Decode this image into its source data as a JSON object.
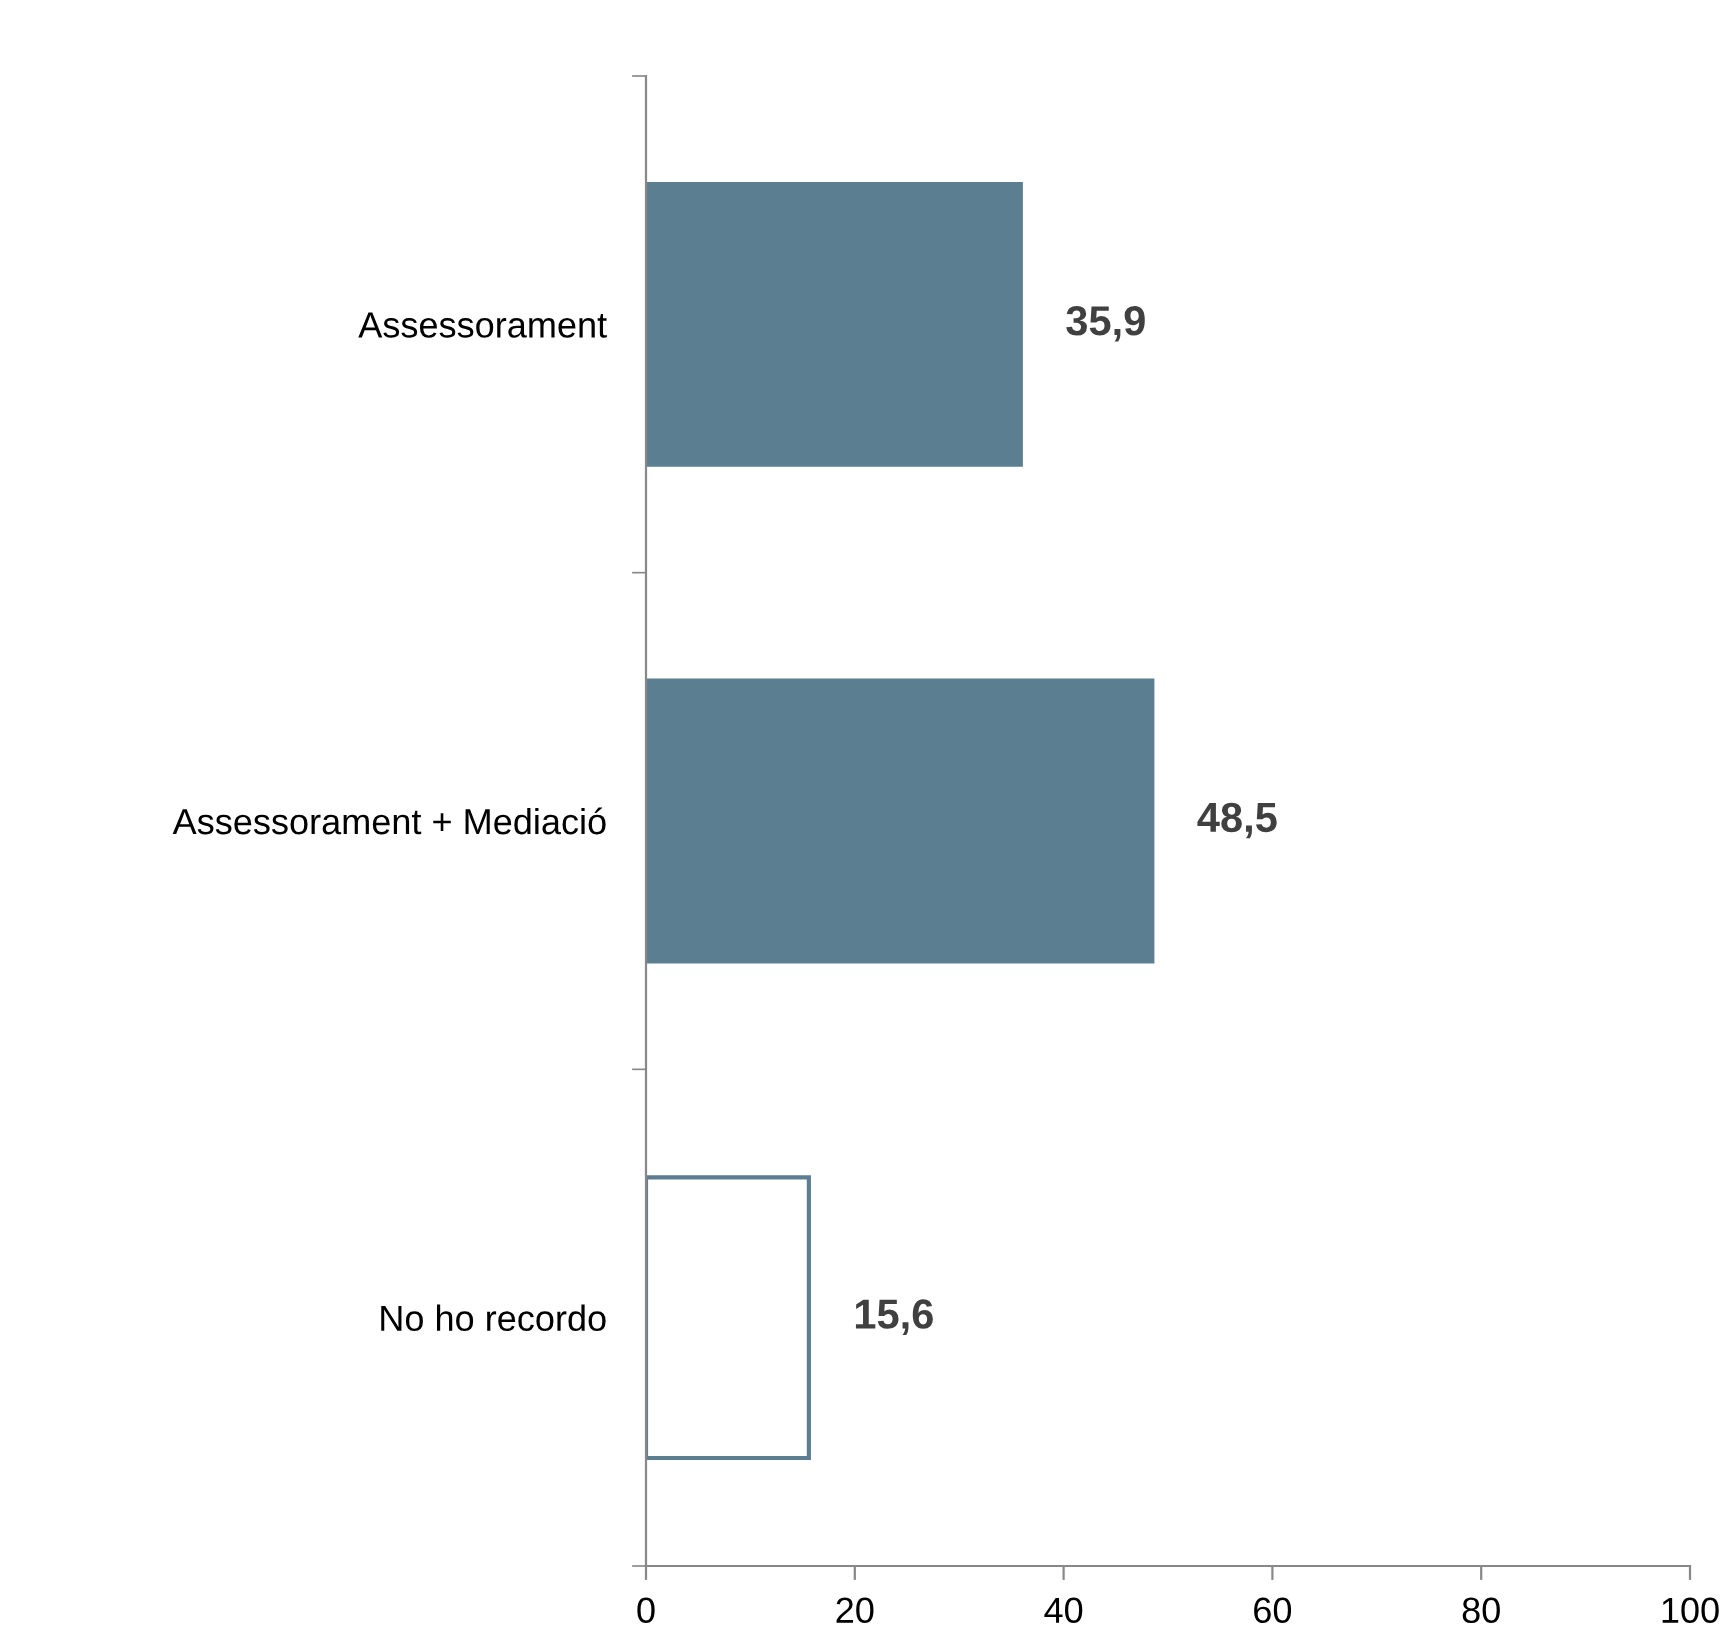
{
  "chart_data": {
    "type": "bar",
    "orientation": "horizontal",
    "categories": [
      "Assessorament",
      "Assessorament + Mediació",
      "No ho recordo"
    ],
    "values": [
      35.9,
      48.5,
      15.6
    ],
    "value_labels": [
      "35,9",
      "48,5",
      "15,6"
    ],
    "color": "#5b7f91",
    "colors": [
      "#5b7f91",
      "#5b7f91",
      "#ffffff"
    ],
    "xlim": [
      0,
      100
    ],
    "xticks": [
      0,
      20,
      40,
      60,
      80,
      100
    ],
    "grid": false,
    "legend": false
  }
}
